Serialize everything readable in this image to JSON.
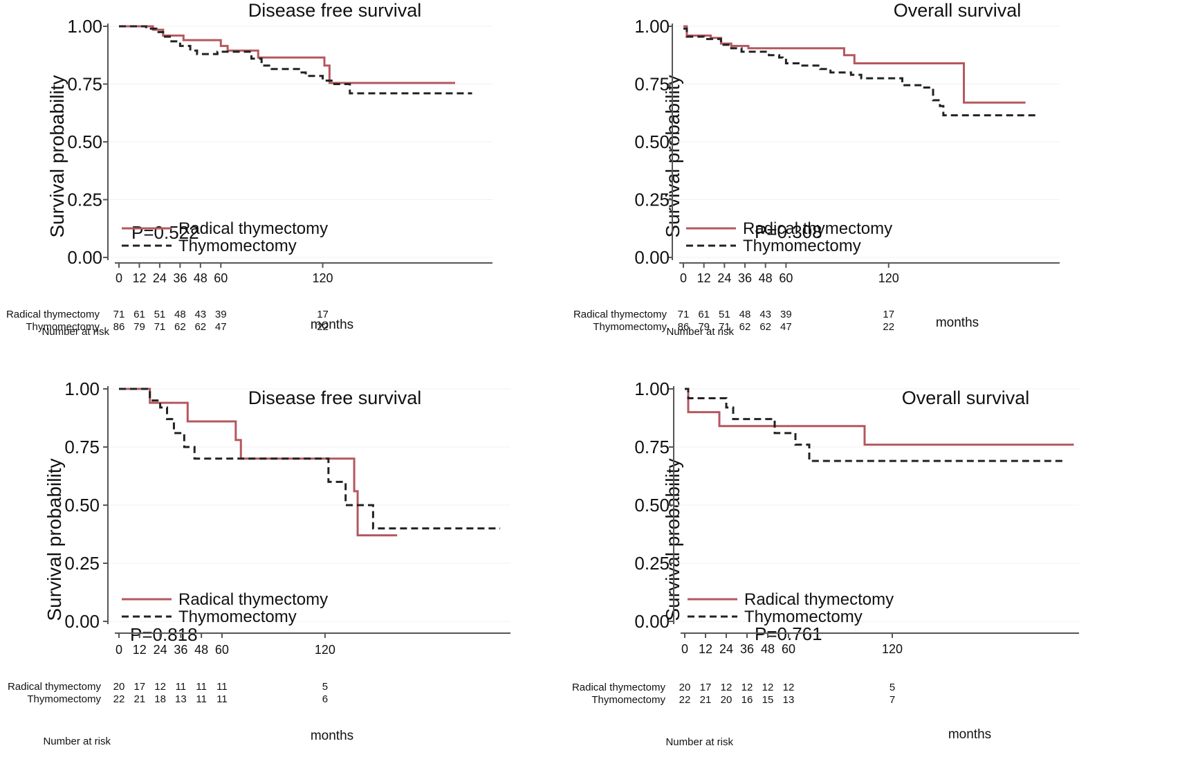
{
  "panels": [
    {
      "title": "Disease free survival",
      "ylabel": "Survival probability",
      "xlabel": "months",
      "p_value": "P=0.522",
      "risk_header": "Number at risk"
    },
    {
      "title": "Overall survival",
      "ylabel": "Survival probability",
      "xlabel": "months",
      "p_value": "P=0.308",
      "risk_header": "Number at risk"
    },
    {
      "title": "Disease free survival",
      "ylabel": "Survival probability",
      "xlabel": "months",
      "p_value": "P=0.818",
      "risk_header": "Number at risk"
    },
    {
      "title": "Overall survival",
      "ylabel": "Survival probability",
      "xlabel": "months",
      "p_value": "P=0.761",
      "risk_header": "Number at risk"
    }
  ],
  "colors": {
    "radical": "#b5575e",
    "thymo": "#222222"
  },
  "chart_data": [
    {
      "type": "line",
      "title": "Disease free survival",
      "xlabel": "months",
      "ylabel": "Survival probability",
      "xlim": [
        0,
        220
      ],
      "ylim": [
        0,
        1
      ],
      "x_ticks": [
        0,
        12,
        24,
        36,
        48,
        60,
        120
      ],
      "y_ticks": [
        "0.00",
        "0.25",
        "0.50",
        "0.75",
        "1.00"
      ],
      "annotation": "P=0.522",
      "legend": [
        "Radical thymectomy",
        "Thymomectomy"
      ],
      "series": [
        {
          "name": "Radical thymectomy",
          "step": true,
          "points": [
            [
              0,
              1.0
            ],
            [
              14,
              1.0
            ],
            [
              20,
              0.985
            ],
            [
              26,
              0.96
            ],
            [
              38,
              0.94
            ],
            [
              60,
              0.915
            ],
            [
              64,
              0.895
            ],
            [
              82,
              0.865
            ],
            [
              121,
              0.83
            ],
            [
              124,
              0.755
            ],
            [
              198,
              0.755
            ]
          ]
        },
        {
          "name": "Thymomectomy",
          "step": true,
          "dashed": true,
          "points": [
            [
              0,
              1.0
            ],
            [
              16,
              0.99
            ],
            [
              22,
              0.975
            ],
            [
              26,
              0.955
            ],
            [
              30,
              0.935
            ],
            [
              36,
              0.915
            ],
            [
              42,
              0.895
            ],
            [
              46,
              0.88
            ],
            [
              58,
              0.89
            ],
            [
              78,
              0.86
            ],
            [
              84,
              0.83
            ],
            [
              90,
              0.815
            ],
            [
              106,
              0.8
            ],
            [
              110,
              0.785
            ],
            [
              120,
              0.765
            ],
            [
              126,
              0.75
            ],
            [
              136,
              0.71
            ],
            [
              208,
              0.71
            ]
          ]
        }
      ],
      "risk_table": {
        "header": "Number at risk",
        "x": [
          0,
          12,
          24,
          36,
          48,
          60,
          120
        ],
        "rows": [
          {
            "name": "Radical thymectomy",
            "values": [
              "71",
              "61",
              "51",
              "48",
              "43",
              "39",
              "17"
            ]
          },
          {
            "name": "Thymomectomy",
            "values": [
              "86",
              "79",
              "71",
              "62",
              "62",
              "47",
              "22"
            ]
          }
        ]
      }
    },
    {
      "type": "line",
      "title": "Overall survival",
      "xlabel": "months",
      "ylabel": "Survival probability",
      "xlim": [
        0,
        220
      ],
      "ylim": [
        0,
        1
      ],
      "x_ticks": [
        0,
        12,
        24,
        36,
        48,
        60,
        120
      ],
      "y_ticks": [
        "0.00",
        "0.25",
        "0.50",
        "0.75",
        "1.00"
      ],
      "annotation": "P=0.308",
      "legend": [
        "Radical thymectomy",
        "Thymomectomy"
      ],
      "series": [
        {
          "name": "Radical thymectomy",
          "step": true,
          "points": [
            [
              0,
              1.0
            ],
            [
              2,
              0.96
            ],
            [
              16,
              0.95
            ],
            [
              22,
              0.925
            ],
            [
              28,
              0.915
            ],
            [
              38,
              0.905
            ],
            [
              94,
              0.875
            ],
            [
              100,
              0.84
            ],
            [
              164,
              0.67
            ],
            [
              200,
              0.67
            ]
          ]
        },
        {
          "name": "Thymomectomy",
          "step": true,
          "dashed": true,
          "points": [
            [
              0,
              0.99
            ],
            [
              2,
              0.955
            ],
            [
              12,
              0.945
            ],
            [
              22,
              0.92
            ],
            [
              28,
              0.905
            ],
            [
              34,
              0.89
            ],
            [
              50,
              0.875
            ],
            [
              56,
              0.865
            ],
            [
              58,
              0.855
            ],
            [
              60,
              0.84
            ],
            [
              68,
              0.83
            ],
            [
              80,
              0.815
            ],
            [
              86,
              0.8
            ],
            [
              98,
              0.79
            ],
            [
              104,
              0.775
            ],
            [
              128,
              0.745
            ],
            [
              140,
              0.735
            ],
            [
              146,
              0.68
            ],
            [
              150,
              0.655
            ],
            [
              152,
              0.615
            ],
            [
              208,
              0.615
            ]
          ]
        }
      ],
      "risk_table": {
        "header": "Number at risk",
        "x": [
          0,
          12,
          24,
          36,
          48,
          60,
          120
        ],
        "rows": [
          {
            "name": "Radical thymectomy",
            "values": [
              "71",
              "61",
              "51",
              "48",
              "43",
              "39",
              "17"
            ]
          },
          {
            "name": "Thymomectomy",
            "values": [
              "86",
              "79",
              "71",
              "62",
              "62",
              "47",
              "22"
            ]
          }
        ]
      }
    },
    {
      "type": "line",
      "title": "Disease free survival",
      "xlabel": "months",
      "ylabel": "Survival probability",
      "xlim": [
        0,
        220
      ],
      "ylim": [
        0,
        1
      ],
      "x_ticks": [
        0,
        12,
        24,
        36,
        48,
        60,
        120
      ],
      "y_ticks": [
        "0.00",
        "0.25",
        "0.50",
        "0.75",
        "1.00"
      ],
      "annotation": "P=0.818",
      "legend": [
        "Radical thymectomy",
        "Thymomectomy"
      ],
      "series": [
        {
          "name": "Radical thymectomy",
          "step": true,
          "points": [
            [
              0,
              1.0
            ],
            [
              18,
              0.94
            ],
            [
              40,
              0.86
            ],
            [
              68,
              0.78
            ],
            [
              71,
              0.7
            ],
            [
              137,
              0.56
            ],
            [
              139,
              0.37
            ],
            [
              162,
              0.37
            ]
          ]
        },
        {
          "name": "Thymomectomy",
          "step": true,
          "dashed": true,
          "points": [
            [
              0,
              1.0
            ],
            [
              18,
              0.95
            ],
            [
              24,
              0.92
            ],
            [
              28,
              0.87
            ],
            [
              32,
              0.81
            ],
            [
              38,
              0.75
            ],
            [
              44,
              0.7
            ],
            [
              122,
              0.6
            ],
            [
              132,
              0.5
            ],
            [
              148,
              0.4
            ],
            [
              222,
              0.4
            ]
          ]
        }
      ],
      "risk_table": {
        "header": "Number at risk",
        "x": [
          0,
          12,
          24,
          36,
          48,
          60,
          120
        ],
        "rows": [
          {
            "name": "Radical thymectomy",
            "values": [
              "20",
              "17",
              "12",
              "11",
              "11",
              "11",
              "5"
            ]
          },
          {
            "name": "Thymomectomy",
            "values": [
              "22",
              "21",
              "18",
              "13",
              "11",
              "11",
              "6"
            ]
          }
        ]
      }
    },
    {
      "type": "line",
      "title": "Overall survival",
      "xlabel": "months",
      "ylabel": "Survival probability",
      "xlim": [
        0,
        220
      ],
      "ylim": [
        0,
        1
      ],
      "x_ticks": [
        0,
        12,
        24,
        36,
        48,
        60,
        120
      ],
      "y_ticks": [
        "0.00",
        "0.25",
        "0.50",
        "0.75",
        "1.00"
      ],
      "annotation": "P=0.761",
      "legend": [
        "Radical thymectomy",
        "Thymomectomy"
      ],
      "series": [
        {
          "name": "Radical thymectomy",
          "step": true,
          "points": [
            [
              0,
              1.0
            ],
            [
              2,
              0.9
            ],
            [
              20,
              0.84
            ],
            [
              104,
              0.76
            ],
            [
              225,
              0.76
            ]
          ]
        },
        {
          "name": "Thymomectomy",
          "step": true,
          "dashed": true,
          "points": [
            [
              0,
              1.0
            ],
            [
              2,
              0.96
            ],
            [
              24,
              0.92
            ],
            [
              28,
              0.87
            ],
            [
              52,
              0.81
            ],
            [
              64,
              0.76
            ],
            [
              72,
              0.69
            ],
            [
              220,
              0.69
            ]
          ]
        }
      ],
      "risk_table": {
        "header": "Number at risk",
        "x": [
          0,
          12,
          24,
          36,
          48,
          60,
          120
        ],
        "rows": [
          {
            "name": "Radical thymectomy",
            "values": [
              "20",
              "17",
              "12",
              "12",
              "12",
              "12",
              "5"
            ]
          },
          {
            "name": "Thymomectomy",
            "values": [
              "22",
              "21",
              "20",
              "16",
              "15",
              "13",
              "7"
            ]
          }
        ]
      }
    }
  ]
}
